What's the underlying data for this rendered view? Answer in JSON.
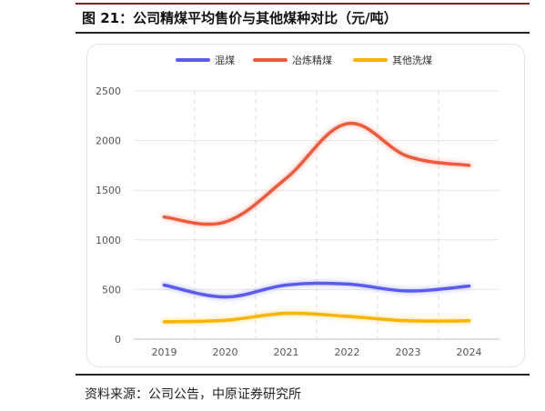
{
  "figure": {
    "title": "图 21：公司精煤平均售价与其他煤种对比（元/吨）",
    "source": "资料来源：公司公告，中原证券研究所"
  },
  "colors": {
    "frame_red": "#8b1a1a",
    "series_hunmei": "#5b5bf0",
    "series_yelian": "#f05a3c",
    "series_qita": "#f7b500"
  },
  "chart_data": {
    "type": "line",
    "title": "",
    "xlabel": "",
    "ylabel": "",
    "x": [
      "2019",
      "2020",
      "2021",
      "2022",
      "2023",
      "2024"
    ],
    "ylim": [
      0,
      2500
    ],
    "yticks": [
      0,
      500,
      1000,
      1500,
      2000,
      2500
    ],
    "grid": true,
    "smooth": true,
    "legend_position": "top-center",
    "series": [
      {
        "name": "混煤",
        "values": [
          545,
          425,
          545,
          555,
          485,
          535
        ],
        "color": "#5b5bf0"
      },
      {
        "name": "冶炼精煤",
        "values": [
          1230,
          1180,
          1620,
          2170,
          1840,
          1750
        ],
        "color": "#f05a3c"
      },
      {
        "name": "其他洗煤",
        "values": [
          175,
          190,
          260,
          230,
          185,
          185
        ],
        "color": "#f7b500"
      }
    ]
  }
}
